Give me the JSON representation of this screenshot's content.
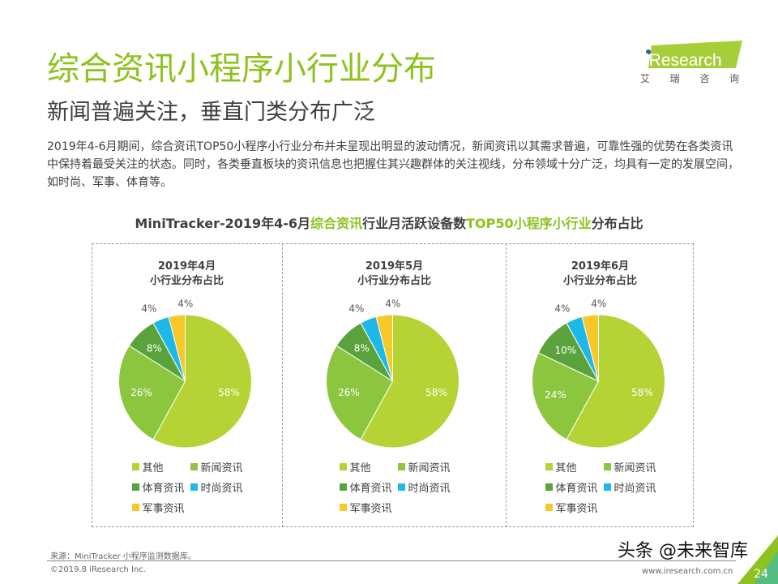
{
  "header": {
    "title": "综合资讯小程序小行业分布",
    "subtitle": "新闻普遍关注，垂直门类分布广泛",
    "description": "2019年4-6月期间，综合资讯TOP50小程序小行业分布并未呈现出明显的波动情况，新闻资讯以其需求普遍，可靠性强的优势在各类资讯中保持着最受关注的状态。同时，各类垂直板块的资讯信息也把握住其兴趣群体的关注视线，分布领域十分广泛，均具有一定的发展空间，如时尚、军事、体育等。"
  },
  "logo": {
    "brand": "iResearch",
    "chars": [
      "艾",
      "瑞",
      "咨",
      "询"
    ],
    "color": "#a6ce39"
  },
  "chart_title": {
    "part1": "MiniTracker-2019年4-6月",
    "part2": "综合资讯",
    "part3": "行业月活跃设备数",
    "part4": "TOP50小程序小行业",
    "part5": "分布占比"
  },
  "chart_data": [
    {
      "type": "pie",
      "title": "2019年4月\n小行业分布占比",
      "title_line1": "2019年4月",
      "title_line2": "小行业分布占比",
      "categories": [
        "其他",
        "新闻资讯",
        "体育资讯",
        "时尚资讯",
        "军事资讯"
      ],
      "values": [
        58,
        26,
        8,
        4,
        4
      ],
      "labels": [
        "58%",
        "26%",
        "8%",
        "4%",
        "4%"
      ]
    },
    {
      "type": "pie",
      "title": "2019年5月\n小行业分布占比",
      "title_line1": "2019年5月",
      "title_line2": "小行业分布占比",
      "categories": [
        "其他",
        "新闻资讯",
        "体育资讯",
        "时尚资讯",
        "军事资讯"
      ],
      "values": [
        58,
        26,
        8,
        4,
        4
      ],
      "labels": [
        "58%",
        "26%",
        "8%",
        "4%",
        "4%"
      ]
    },
    {
      "type": "pie",
      "title": "2019年6月\n小行业分布占比",
      "title_line1": "2019年6月",
      "title_line2": "小行业分布占比",
      "categories": [
        "其他",
        "新闻资讯",
        "体育资讯",
        "时尚资讯",
        "军事资讯"
      ],
      "values": [
        58,
        24,
        10,
        4,
        4
      ],
      "labels": [
        "58%",
        "24%",
        "10%",
        "4%",
        "4%"
      ]
    }
  ],
  "colors": [
    "#b5d334",
    "#8cc63f",
    "#5aa33c",
    "#1eb8e8",
    "#f7c82a"
  ],
  "legend": [
    "其他",
    "新闻资讯",
    "体育资讯",
    "时尚资讯",
    "军事资讯"
  ],
  "footer": {
    "source": "来源：MiniTracker 小程序监测数据库。",
    "copyright": "©2019.8 iResearch Inc.",
    "site": "www.iresearch.com.cn",
    "page": "24",
    "watermark": "头条 @未来智库"
  }
}
